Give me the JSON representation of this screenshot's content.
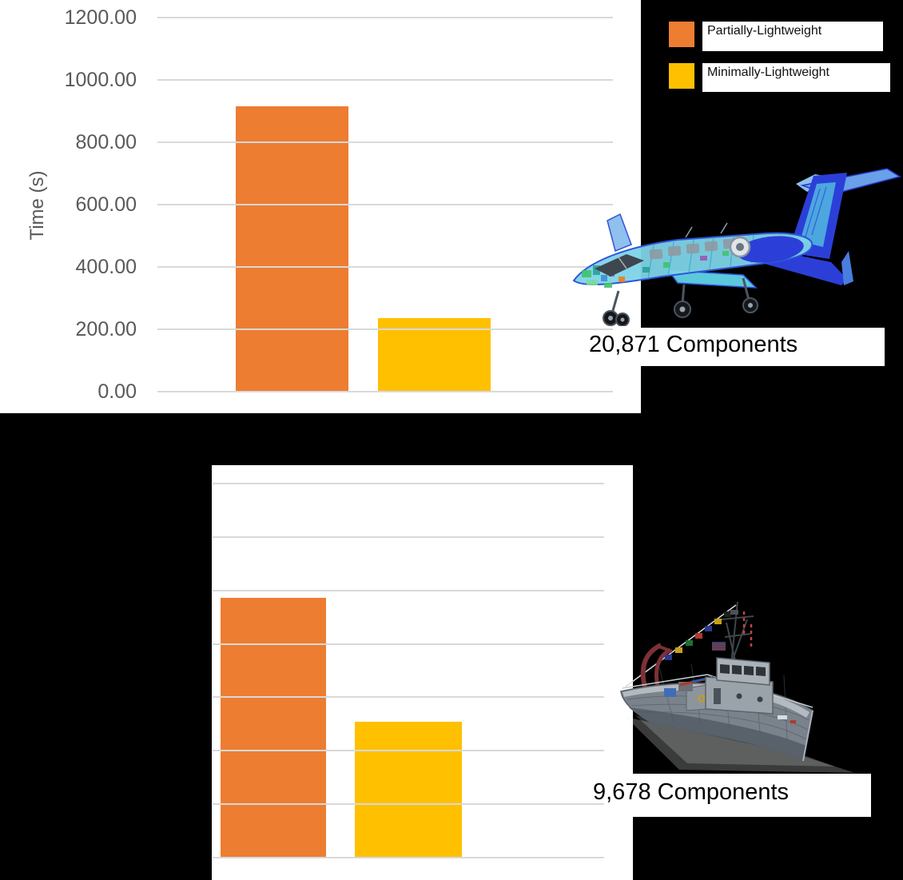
{
  "page": {
    "background": "#000000",
    "panel": "#FFFFFF"
  },
  "colors": {
    "series1": "#ED7D31",
    "series2": "#FFC000",
    "gridline": "#D9D9D9",
    "axis_text": "#595959",
    "caption_text": "#000000"
  },
  "legend": {
    "items": [
      {
        "label": "Partially-Lightweight",
        "color": "#ED7D31"
      },
      {
        "label": "Minimally-Lightweight",
        "color": "#FFC000"
      }
    ]
  },
  "top_chart": {
    "y_axis_label": "Time (s)",
    "y_ticks": [
      "1200.00",
      "1000.00",
      "800.00",
      "600.00",
      "400.00",
      "200.00",
      "0.00"
    ],
    "caption": "20,871 Components"
  },
  "bottom_chart": {
    "caption": "9,678 Components",
    "visible_gridlines": 8
  },
  "chart_data": [
    {
      "type": "bar",
      "subject": "aircraft CAD model",
      "caption": "20,871 Components",
      "categories": [
        "Partially-Lightweight",
        "Minimally-Lightweight"
      ],
      "values": [
        915,
        235
      ],
      "unit": "seconds",
      "ylabel": "Time (s)",
      "ylim": [
        0,
        1200
      ],
      "ytick_step": 200,
      "ytick_format": "0.00",
      "grid": true,
      "colors": [
        "#ED7D31",
        "#FFC000"
      ],
      "legend_entries": [
        "Partially-Lightweight",
        "Minimally-Lightweight"
      ],
      "legend_position": "outside-top-right"
    },
    {
      "type": "bar",
      "subject": "ship CAD model",
      "caption": "9,678 Components",
      "categories": [
        "Partially-Lightweight",
        "Minimally-Lightweight"
      ],
      "values_gridline_units": [
        4.86,
        2.54
      ],
      "axis_note": "y-axis tick labels cropped out of frame; 8 gridlines visible",
      "grid": true,
      "colors": [
        "#ED7D31",
        "#FFC000"
      ]
    }
  ]
}
